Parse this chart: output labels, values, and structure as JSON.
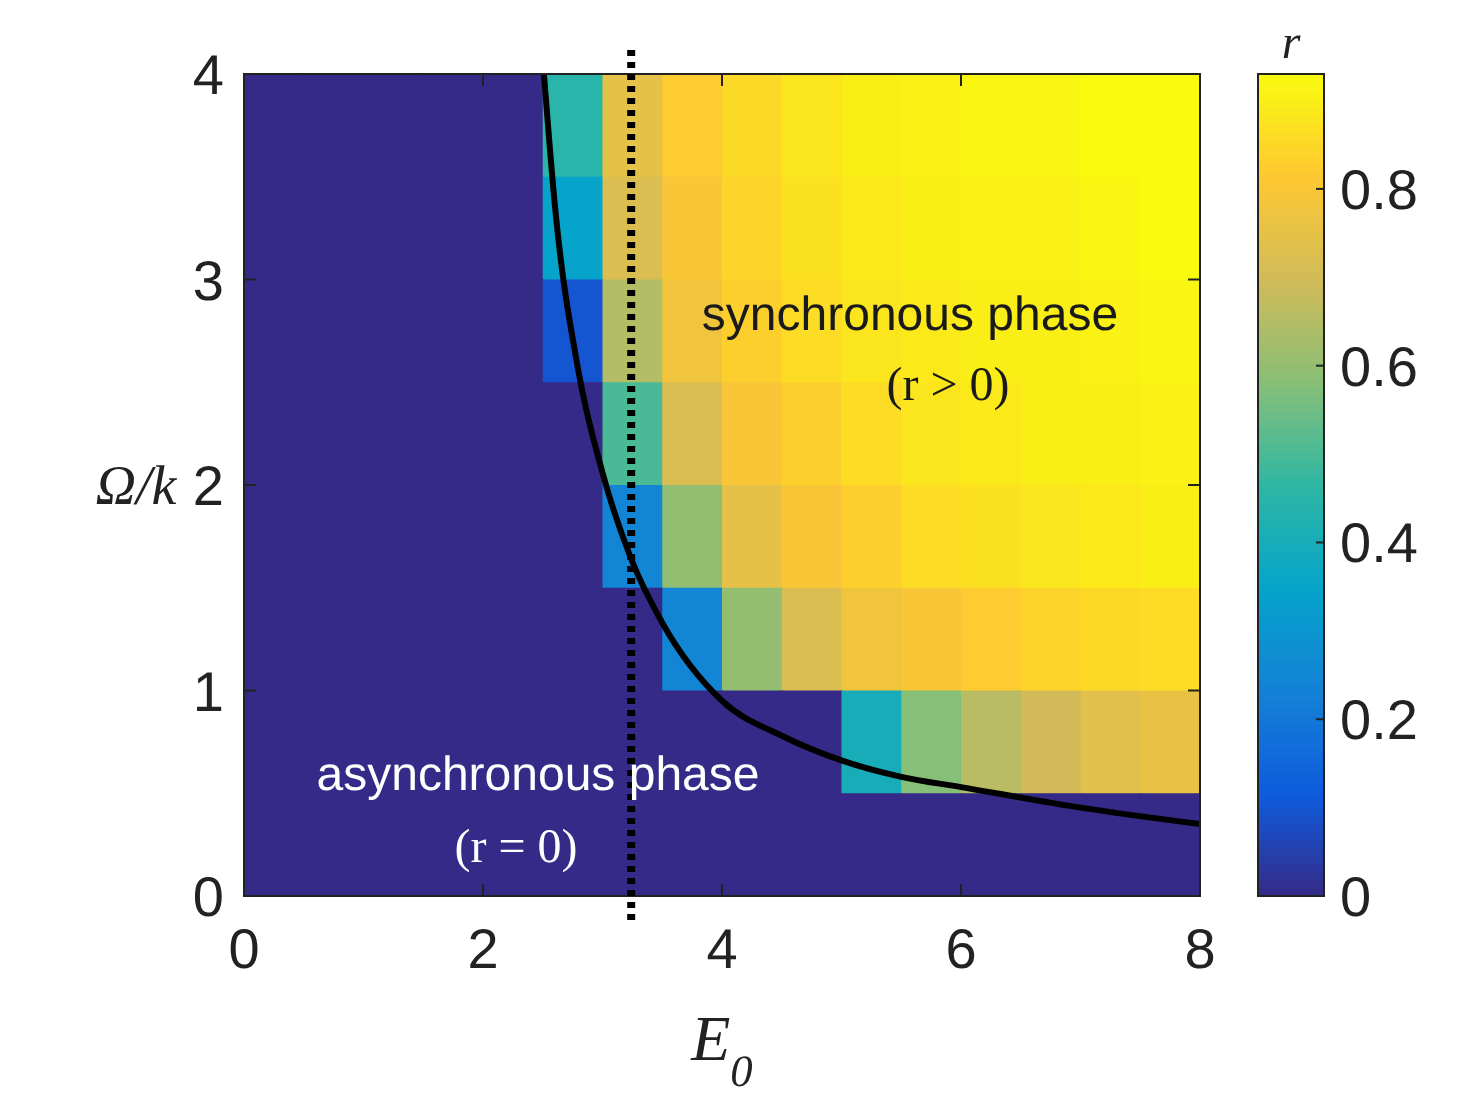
{
  "chart_data": {
    "type": "heatmap",
    "xlabel": "E$_{0}$",
    "ylabel": "Ω/k",
    "clabel": "r",
    "x": [
      0.25,
      0.75,
      1.25,
      1.75,
      2.25,
      2.75,
      3.25,
      3.75,
      4.25,
      4.75,
      5.25,
      5.75,
      6.25,
      6.75,
      7.25,
      7.75
    ],
    "y": [
      3.75,
      3.25,
      2.75,
      2.25,
      1.75,
      1.25,
      0.75,
      0.25
    ],
    "xlim": [
      0,
      8
    ],
    "xticks": [
      0,
      2,
      4,
      6,
      8
    ],
    "ylim": [
      0,
      4
    ],
    "yticks": [
      0,
      1,
      2,
      3,
      4
    ],
    "clim": [
      0,
      0.93
    ],
    "cticks": [
      0,
      0.2,
      0.4,
      0.6,
      0.8
    ],
    "cells": [
      [
        0,
        0,
        0,
        0,
        0,
        0.45,
        0.75,
        0.82,
        0.85,
        0.88,
        0.9,
        0.91,
        0.92,
        0.92,
        0.93,
        0.93
      ],
      [
        0,
        0,
        0,
        0,
        0,
        0.35,
        0.72,
        0.8,
        0.84,
        0.87,
        0.89,
        0.9,
        0.91,
        0.91,
        0.92,
        0.93
      ],
      [
        0,
        0,
        0,
        0,
        0,
        0.1,
        0.65,
        0.78,
        0.83,
        0.86,
        0.88,
        0.89,
        0.9,
        0.9,
        0.91,
        0.92
      ],
      [
        0,
        0,
        0,
        0,
        0,
        0,
        0.5,
        0.72,
        0.8,
        0.83,
        0.86,
        0.88,
        0.89,
        0.9,
        0.9,
        0.91
      ],
      [
        0,
        0,
        0,
        0,
        0,
        0,
        0.25,
        0.6,
        0.75,
        0.8,
        0.83,
        0.86,
        0.87,
        0.88,
        0.89,
        0.9
      ],
      [
        0,
        0,
        0,
        0,
        0,
        0,
        0,
        0.25,
        0.6,
        0.72,
        0.78,
        0.8,
        0.82,
        0.84,
        0.85,
        0.86
      ],
      [
        0,
        0,
        0,
        0,
        0,
        0,
        0,
        0,
        0,
        0,
        0.4,
        0.58,
        0.66,
        0.7,
        0.74,
        0.76
      ],
      [
        0,
        0,
        0,
        0,
        0,
        0,
        0,
        0,
        0,
        0,
        0,
        0,
        0,
        0,
        0,
        0
      ]
    ],
    "series": [
      {
        "type": "line",
        "color": "#000000",
        "x": [
          2.51,
          2.6,
          2.8,
          3.0,
          3.24,
          3.5,
          4.0,
          4.5,
          5.0,
          5.5,
          6.0,
          7.0,
          8.0
        ],
        "values": [
          4.0,
          3.37,
          2.55,
          2.06,
          1.64,
          1.33,
          0.95,
          0.78,
          0.66,
          0.58,
          0.53,
          0.43,
          0.35
        ]
      }
    ],
    "ref_lines": [
      {
        "axis": "x",
        "value": 3.24,
        "color": "#000000",
        "line_style": "dotted"
      }
    ],
    "annotations": [
      "synchronous phase",
      "(r > 0)",
      "asynchronous phase",
      "(r = 0)"
    ],
    "grid": false
  }
}
